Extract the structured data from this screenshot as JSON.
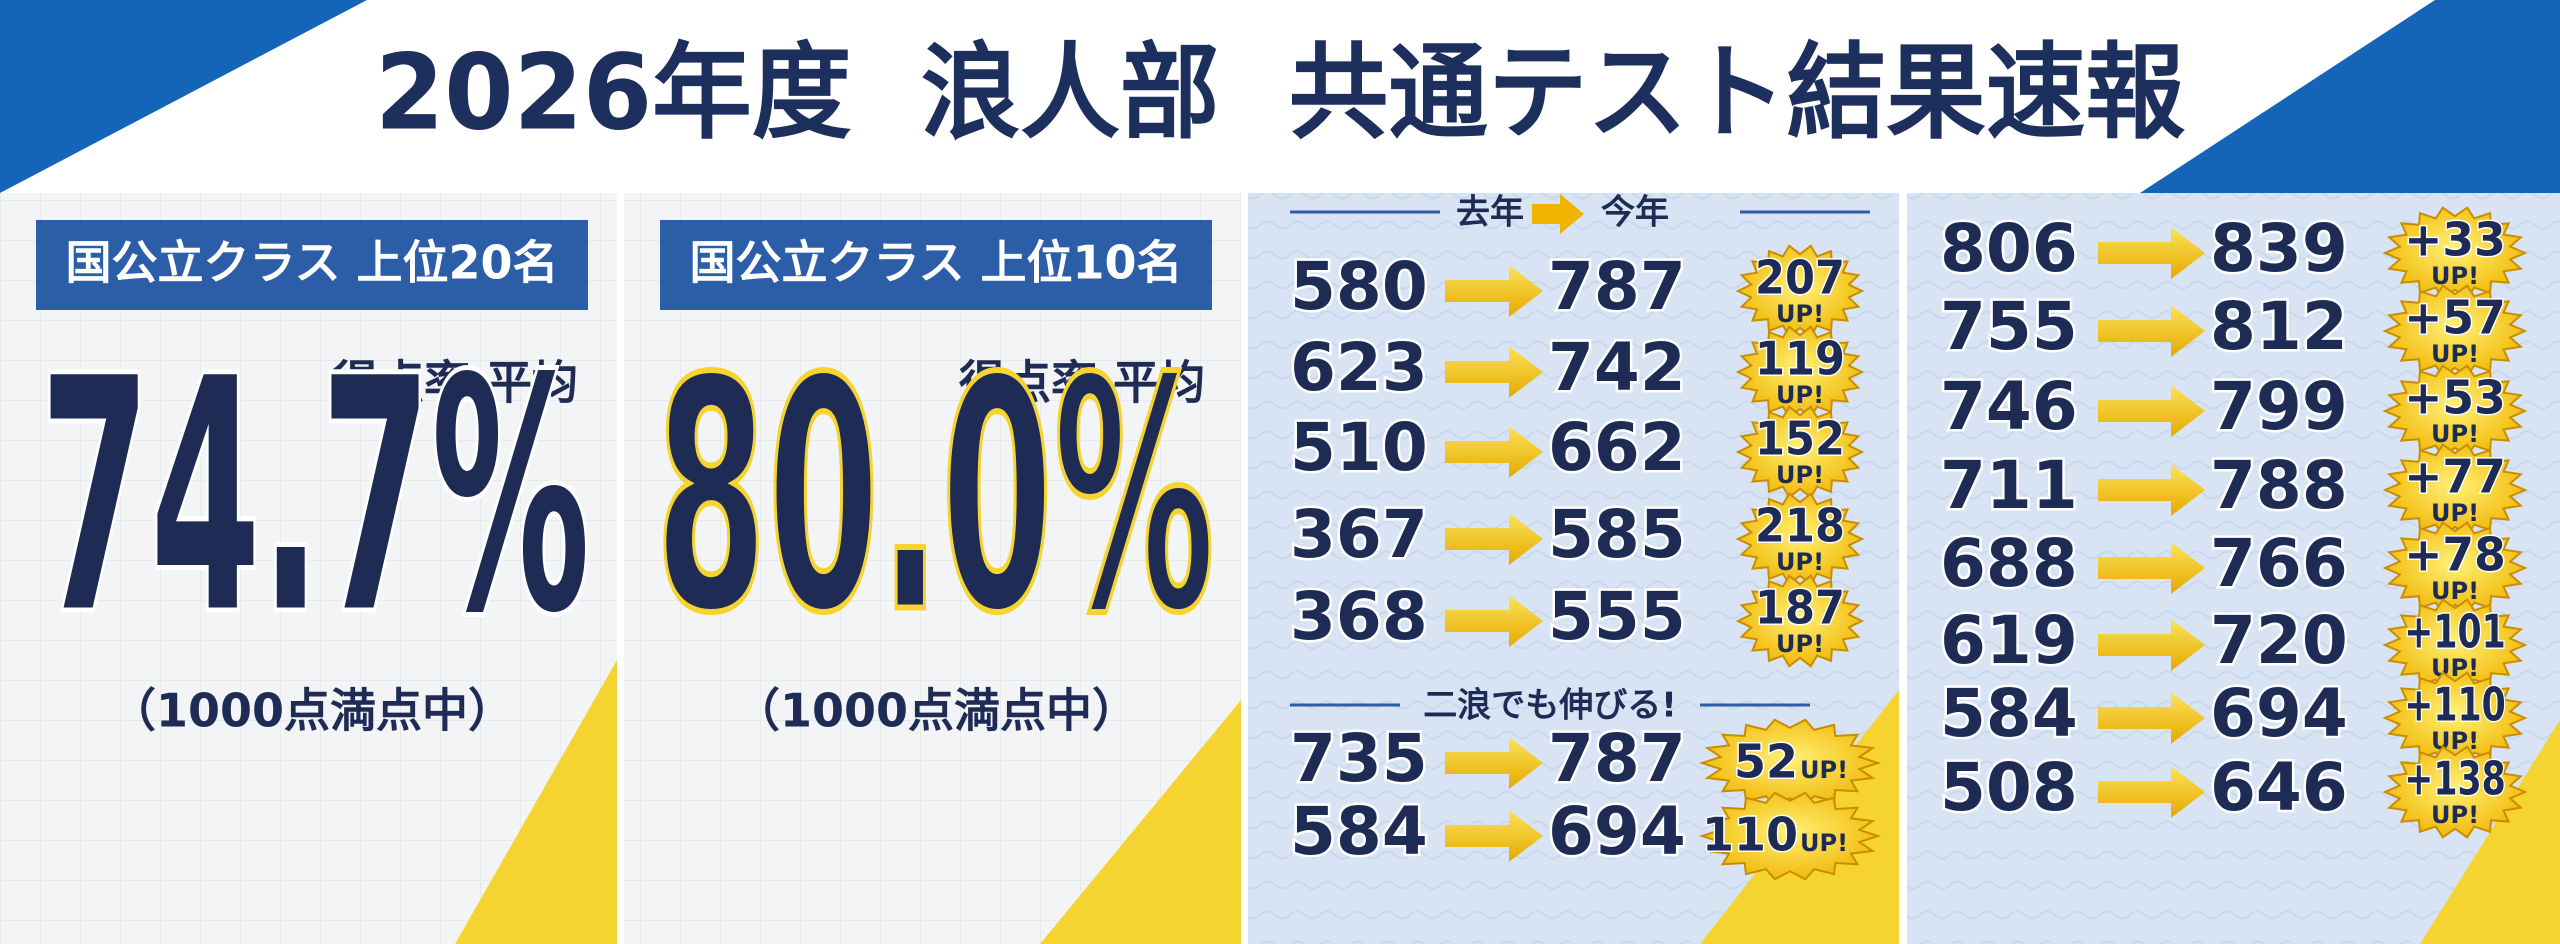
{
  "header": {
    "title": "2026年度  浪人部  共通テスト結果速報"
  },
  "panels": [
    {
      "label": "国公立クラス 上位20名",
      "caption": "得点率 平均",
      "value": "74.7%",
      "note": "（1000点満点中）"
    },
    {
      "label": "国公立クラス 上位10名",
      "caption": "得点率 平均",
      "value": "80.0%",
      "note": "（1000点満点中）"
    }
  ],
  "improvements": {
    "column_headers": [
      "去年",
      "今年"
    ],
    "badge_suffix": "UP!",
    "rows": [
      {
        "before": 580,
        "after": 787,
        "gain": 207
      },
      {
        "before": 623,
        "after": 742,
        "gain": 119
      },
      {
        "before": 510,
        "after": 662,
        "gain": 152
      },
      {
        "before": 367,
        "after": 585,
        "gain": 218
      },
      {
        "before": 368,
        "after": 555,
        "gain": 187
      }
    ],
    "second_year_heading": "二浪でも伸びる!",
    "second_year_rows": [
      {
        "before": 735,
        "after": 787,
        "gain": 52
      },
      {
        "before": 584,
        "after": 694,
        "gain": 110
      }
    ],
    "more_rows": [
      {
        "before": 806,
        "after": 839,
        "gain": "+33"
      },
      {
        "before": 755,
        "after": 812,
        "gain": "+57"
      },
      {
        "before": 746,
        "after": 799,
        "gain": "+53"
      },
      {
        "before": 711,
        "after": 788,
        "gain": "+77"
      },
      {
        "before": 688,
        "after": 766,
        "gain": "+78"
      },
      {
        "before": 619,
        "after": 720,
        "gain": "+101"
      },
      {
        "before": 584,
        "after": 694,
        "gain": "+110"
      },
      {
        "before": 508,
        "after": 646,
        "gain": "+138"
      }
    ]
  }
}
